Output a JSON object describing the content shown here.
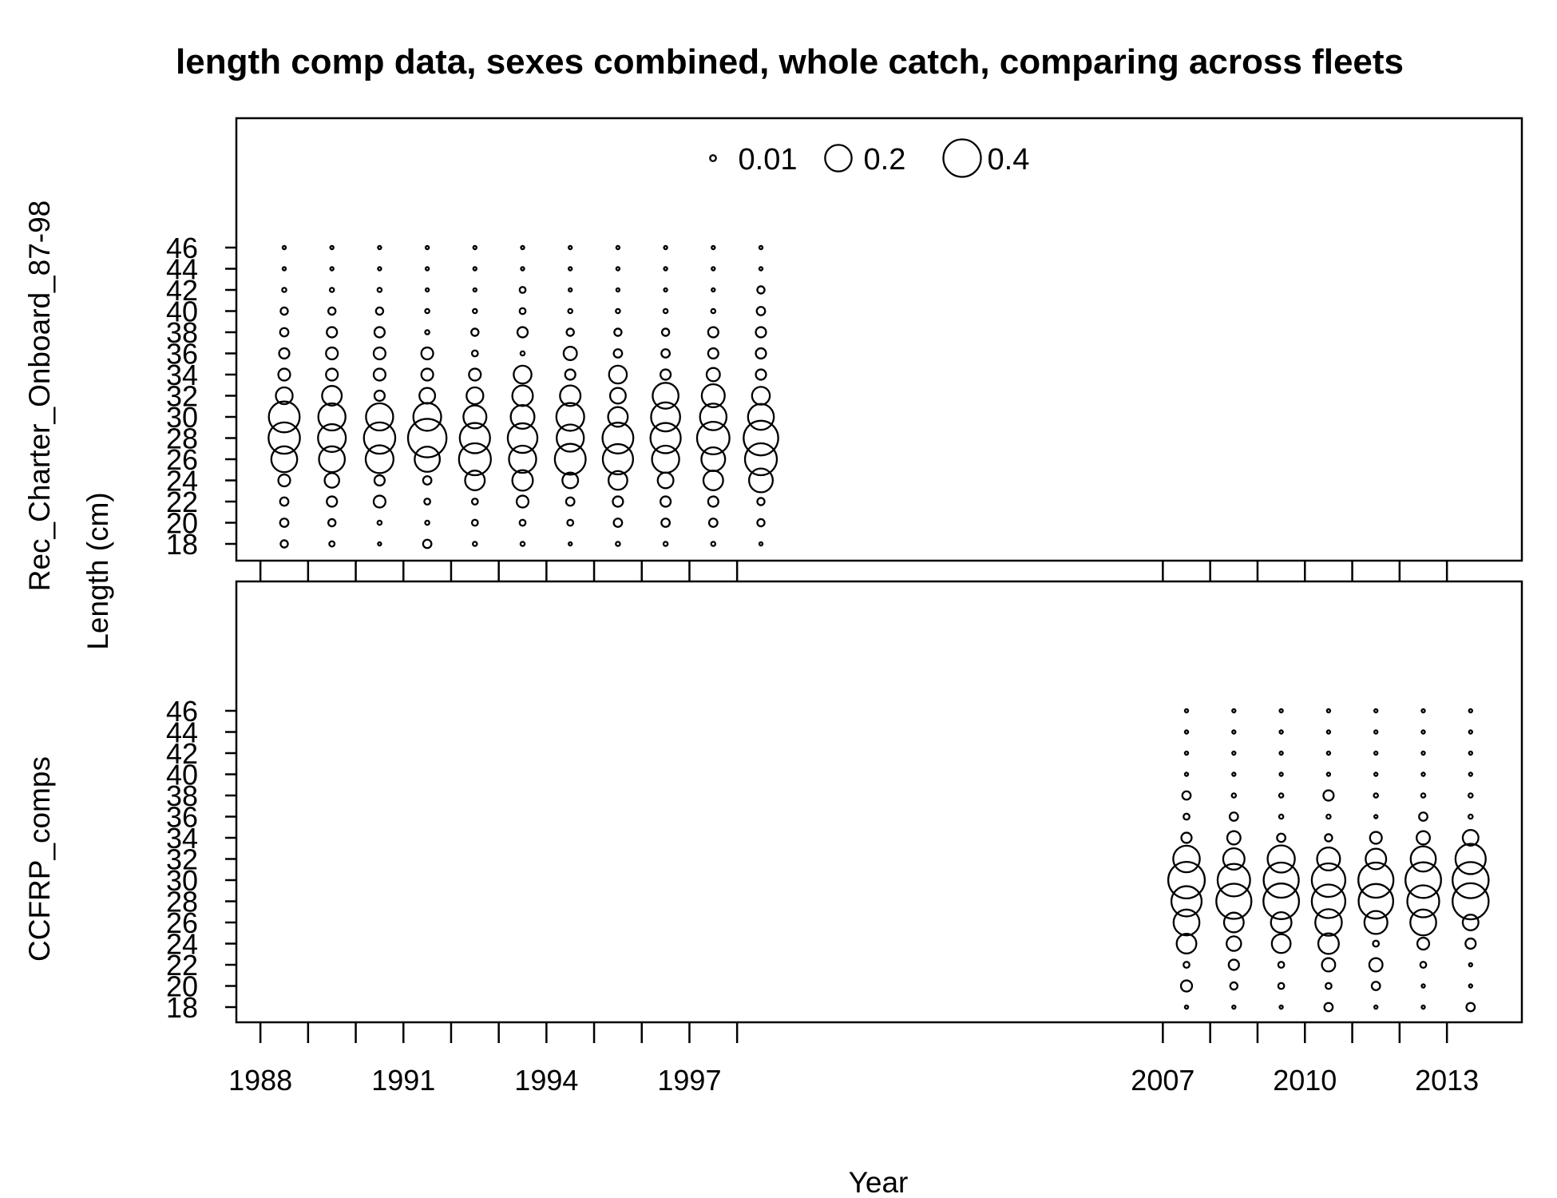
{
  "chart_data": {
    "type": "scatter",
    "subtype": "bubble",
    "title": "length comp data, sexes combined, whole catch, comparing across fleets",
    "xlabel": "Year",
    "ylabel": "Length (cm)",
    "x_tick_labels": [
      "1988",
      "1991",
      "1994",
      "1997",
      "2007",
      "2010",
      "2013"
    ],
    "x_tick_years": [
      1987.5,
      1988.5,
      1989.5,
      1990.5,
      1991.5,
      1992.5,
      1993.5,
      1994.5,
      1995.5,
      1996.5,
      1997.5,
      2006.5,
      2007.5,
      2008.5,
      2009.5,
      2010.5,
      2011.5,
      2012.5
    ],
    "y_tick_labels": [
      "18",
      "20",
      "22",
      "24",
      "26",
      "28",
      "30",
      "32",
      "34",
      "36",
      "38",
      "40",
      "42",
      "44",
      "46"
    ],
    "lengths": [
      18,
      20,
      22,
      24,
      26,
      28,
      30,
      32,
      34,
      36,
      38,
      40,
      42,
      44,
      46
    ],
    "legend": {
      "placement": "top-center",
      "entries": [
        {
          "label": "0.01",
          "value": 0.01
        },
        {
          "label": "0.2",
          "value": 0.2
        },
        {
          "label": "0.4",
          "value": 0.4
        }
      ]
    },
    "panels": [
      {
        "name": "Rec_Charter_Onboard_87-98",
        "years": [
          1988,
          1989,
          1990,
          1991,
          1992,
          1993,
          1994,
          1995,
          1996,
          1997,
          1998
        ],
        "proportions": [
          [
            0.015,
            0.02,
            0.02,
            0.04,
            0.19,
            0.28,
            0.27,
            0.08,
            0.04,
            0.03,
            0.02,
            0.015,
            0.005,
            0.003,
            0.003
          ],
          [
            0.008,
            0.015,
            0.03,
            0.06,
            0.19,
            0.22,
            0.21,
            0.11,
            0.04,
            0.04,
            0.03,
            0.015,
            0.005,
            0.003,
            0.003
          ],
          [
            0.003,
            0.005,
            0.04,
            0.03,
            0.22,
            0.28,
            0.21,
            0.03,
            0.04,
            0.04,
            0.03,
            0.015,
            0.005,
            0.003,
            0.003
          ],
          [
            0.02,
            0.005,
            0.01,
            0.02,
            0.18,
            0.42,
            0.22,
            0.07,
            0.04,
            0.04,
            0.005,
            0.005,
            0.003,
            0.003,
            0.003
          ],
          [
            0.005,
            0.01,
            0.01,
            0.11,
            0.29,
            0.26,
            0.15,
            0.08,
            0.04,
            0.01,
            0.015,
            0.005,
            0.003,
            0.003,
            0.003
          ],
          [
            0.005,
            0.01,
            0.04,
            0.12,
            0.21,
            0.25,
            0.16,
            0.12,
            0.09,
            0.005,
            0.03,
            0.01,
            0.01,
            0.003,
            0.003
          ],
          [
            0.003,
            0.01,
            0.02,
            0.07,
            0.27,
            0.21,
            0.22,
            0.12,
            0.03,
            0.05,
            0.015,
            0.005,
            0.003,
            0.003,
            0.003
          ],
          [
            0.005,
            0.02,
            0.03,
            0.1,
            0.26,
            0.27,
            0.11,
            0.07,
            0.09,
            0.02,
            0.015,
            0.005,
            0.003,
            0.003,
            0.003
          ],
          [
            0.005,
            0.02,
            0.03,
            0.07,
            0.21,
            0.26,
            0.24,
            0.19,
            0.03,
            0.02,
            0.015,
            0.005,
            0.003,
            0.003,
            0.003
          ],
          [
            0.005,
            0.02,
            0.03,
            0.11,
            0.16,
            0.3,
            0.2,
            0.15,
            0.05,
            0.03,
            0.03,
            0.005,
            0.003,
            0.003,
            0.003
          ],
          [
            0.003,
            0.015,
            0.015,
            0.16,
            0.29,
            0.34,
            0.19,
            0.09,
            0.03,
            0.03,
            0.03,
            0.02,
            0.015,
            0.003,
            0.003
          ]
        ]
      },
      {
        "name": "CCFRP_comps",
        "years": [
          2007,
          2008,
          2009,
          2010,
          2011,
          2012,
          2013
        ],
        "proportions": [
          [
            0.003,
            0.035,
            0.01,
            0.11,
            0.19,
            0.26,
            0.38,
            0.2,
            0.03,
            0.01,
            0.02,
            0.003,
            0.003,
            0.003,
            0.003
          ],
          [
            0.003,
            0.015,
            0.03,
            0.06,
            0.11,
            0.35,
            0.3,
            0.13,
            0.05,
            0.02,
            0.005,
            0.003,
            0.003,
            0.003,
            0.003
          ],
          [
            0.003,
            0.01,
            0.01,
            0.1,
            0.12,
            0.36,
            0.35,
            0.21,
            0.02,
            0.005,
            0.005,
            0.003,
            0.003,
            0.003,
            0.003
          ],
          [
            0.02,
            0.01,
            0.05,
            0.12,
            0.2,
            0.32,
            0.32,
            0.15,
            0.015,
            0.005,
            0.03,
            0.003,
            0.003,
            0.003,
            0.003
          ],
          [
            0.003,
            0.02,
            0.05,
            0.01,
            0.15,
            0.34,
            0.35,
            0.12,
            0.04,
            0.003,
            0.005,
            0.003,
            0.003,
            0.003,
            0.003
          ],
          [
            0.003,
            0.003,
            0.01,
            0.04,
            0.19,
            0.29,
            0.36,
            0.18,
            0.05,
            0.02,
            0.005,
            0.003,
            0.003,
            0.003,
            0.003
          ],
          [
            0.02,
            0.003,
            0.003,
            0.03,
            0.07,
            0.37,
            0.37,
            0.26,
            0.07,
            0.005,
            0.005,
            0.003,
            0.003,
            0.003,
            0.003
          ]
        ]
      }
    ]
  }
}
